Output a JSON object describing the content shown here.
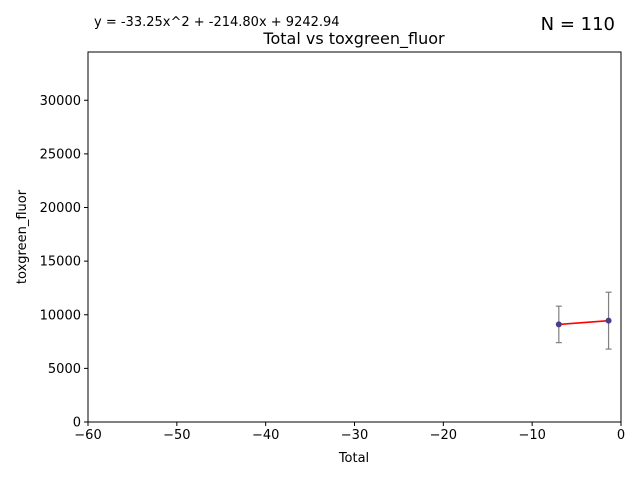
{
  "chart_data": {
    "type": "scatter",
    "title": "Total vs toxgreen_fluor",
    "equation": "y = -33.25x^2 + -214.80x + 9242.94",
    "n_label": "N = 110",
    "xlabel": "Total",
    "ylabel": "toxgreen_fluor",
    "xlim": [
      -60,
      0
    ],
    "ylim": [
      0,
      34500
    ],
    "xticks": [
      -60,
      -50,
      -40,
      -30,
      -20,
      -10,
      0
    ],
    "yticks": [
      0,
      5000,
      10000,
      15000,
      20000,
      25000,
      30000
    ],
    "grid": false,
    "points": [
      {
        "x": -7.0,
        "y": 9100,
        "err_low": 7400,
        "err_high": 10800
      },
      {
        "x": -1.4,
        "y": 9450,
        "err_low": 6800,
        "err_high": 12100
      }
    ],
    "fit_line": {
      "x": [
        -7.0,
        -1.4
      ],
      "y": [
        9100,
        9450
      ]
    },
    "colors": {
      "points": "#483d8b",
      "fit": "#ff0000",
      "errorbars": "#808080"
    }
  }
}
